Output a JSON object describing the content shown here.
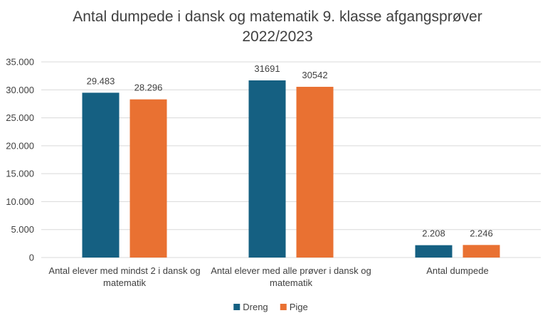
{
  "chart_data": {
    "type": "bar",
    "title_lines": [
      "Antal dumpede i dansk og matematik 9. klasse afgangsprøver",
      "2022/2023"
    ],
    "categories": [
      [
        "Antal elever med mindst 2 i dansk og",
        "matematik"
      ],
      [
        "Antal elever med alle prøver i dansk og",
        "matematik"
      ],
      [
        "Antal dumpede"
      ]
    ],
    "series": [
      {
        "name": "Dreng",
        "color": "#156082",
        "values": [
          29483,
          31691,
          2208
        ],
        "labels": [
          "29.483",
          "31691",
          "2.208"
        ]
      },
      {
        "name": "Pige",
        "color": "#e97132",
        "values": [
          28296,
          30542,
          2246
        ],
        "labels": [
          "28.296",
          "30542",
          "2.246"
        ]
      }
    ],
    "ylim": [
      0,
      35000
    ],
    "yticks": [
      0,
      5000,
      10000,
      15000,
      20000,
      25000,
      30000,
      35000
    ],
    "ytick_labels": [
      "0",
      "5.000",
      "10.000",
      "15.000",
      "20.000",
      "25.000",
      "30.000",
      "35.000"
    ],
    "grid": true,
    "legend_position": "bottom"
  }
}
